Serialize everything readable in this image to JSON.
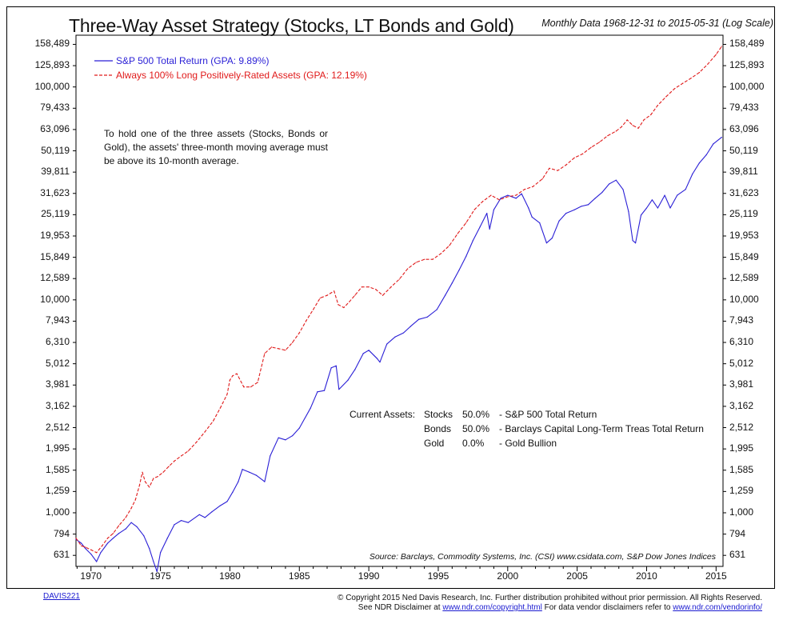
{
  "title": "Three-Way Asset Strategy (Stocks, LT Bonds and Gold)",
  "subtitle": "Monthly Data 1968-12-31 to 2015-05-31 (Log Scale)",
  "legend": [
    {
      "label": "S&P 500 Total Return (GPA: 9.89%)",
      "color": "#2a1fd6",
      "style": "solid"
    },
    {
      "label": "Always 100% Long Positively-Rated Assets (GPA: 12.19%)",
      "color": "#e01a1a",
      "style": "dashed"
    }
  ],
  "note": "To hold one of the three assets (Stocks, Bonds or Gold), the assets' three-month moving average must be above its 10-month average.",
  "current_assets": {
    "heading": "Current Assets:",
    "rows": [
      {
        "asset": "Stocks",
        "weight": "50.0%",
        "desc": "- S&P 500 Total Return"
      },
      {
        "asset": "Bonds",
        "weight": "50.0%",
        "desc": "- Barclays Capital Long-Term Treas Total Return"
      },
      {
        "asset": "Gold",
        "weight": "0.0%",
        "desc": "- Gold Bullion"
      }
    ]
  },
  "source": "Source: Barclays, Commodity Systems, Inc. (CSI) www.csidata.com, S&P Dow Jones Indices",
  "footer_id": "DAVIS221",
  "copyright": {
    "line1": "© Copyright 2015 Ned Davis Research, Inc. Further distribution prohibited without prior permission. All Rights Reserved.",
    "line2_prefix": "See NDR Disclaimer at ",
    "line2_link1": "www.ndr.com/copyright.html",
    "line2_mid": "  For data vendor disclaimers refer to ",
    "line2_link2": "www.ndr.com/vendorinfo/"
  },
  "chart_data": {
    "type": "line",
    "scale": "log",
    "ylim": [
      560,
      175000
    ],
    "xlim": [
      1968.92,
      2015.5
    ],
    "y_ticks": [
      631,
      794,
      1000,
      1259,
      1585,
      1995,
      2512,
      3162,
      3981,
      5012,
      6310,
      7943,
      10000,
      12589,
      15849,
      19953,
      25119,
      31623,
      39811,
      50119,
      63096,
      79433,
      100000,
      125893,
      158489
    ],
    "y_tick_labels": [
      "631",
      "794",
      "1,000",
      "1,259",
      "1,585",
      "1,995",
      "2,512",
      "3,162",
      "3,981",
      "5,012",
      "6,310",
      "7,943",
      "10,000",
      "12,589",
      "15,849",
      "19,953",
      "25,119",
      "31,623",
      "39,811",
      "50,119",
      "63,096",
      "79,433",
      "100,000",
      "125,893",
      "158,489"
    ],
    "x_ticks": [
      1970,
      1975,
      1980,
      1985,
      1990,
      1995,
      2000,
      2005,
      2010,
      2015
    ],
    "x_tick_labels": [
      "1970",
      "1975",
      "1980",
      "1985",
      "1990",
      "1995",
      "2000",
      "2005",
      "2010",
      "2015"
    ],
    "series": [
      {
        "name": "S&P 500 Total Return (GPA: 9.89%)",
        "color": "#2a1fd6",
        "dash": false,
        "x": [
          1968.92,
          1969.3,
          1969.6,
          1970.0,
          1970.4,
          1970.7,
          1971.2,
          1971.6,
          1972.0,
          1972.5,
          1972.9,
          1973.3,
          1973.8,
          1974.2,
          1974.5,
          1974.75,
          1975.0,
          1975.5,
          1976.0,
          1976.5,
          1977.0,
          1977.8,
          1978.2,
          1978.7,
          1979.3,
          1979.8,
          1980.2,
          1980.6,
          1980.9,
          1981.4,
          1981.9,
          1982.5,
          1982.9,
          1983.5,
          1984.0,
          1984.5,
          1985.0,
          1985.8,
          1986.3,
          1986.8,
          1987.3,
          1987.65,
          1987.85,
          1988.5,
          1989.0,
          1989.6,
          1990.0,
          1990.6,
          1990.8,
          1991.3,
          1991.9,
          1992.5,
          1993.0,
          1993.6,
          1994.2,
          1994.9,
          1995.5,
          1996.0,
          1996.5,
          1997.0,
          1997.5,
          1998.0,
          1998.5,
          1998.7,
          1999.0,
          1999.5,
          2000.0,
          2000.6,
          2001.0,
          2001.5,
          2001.75,
          2002.3,
          2002.8,
          2003.2,
          2003.7,
          2004.2,
          2004.8,
          2005.3,
          2005.8,
          2006.3,
          2006.8,
          2007.3,
          2007.8,
          2008.3,
          2008.7,
          2009.0,
          2009.2,
          2009.6,
          2010.0,
          2010.4,
          2010.8,
          2011.3,
          2011.7,
          2012.2,
          2012.8,
          2013.3,
          2013.8,
          2014.3,
          2014.8,
          2015.4
        ],
        "values": [
          750,
          720,
          680,
          640,
          590,
          650,
          720,
          760,
          800,
          840,
          900,
          860,
          780,
          680,
          590,
          530,
          650,
          760,
          880,
          920,
          900,
          980,
          950,
          1010,
          1080,
          1130,
          1250,
          1400,
          1600,
          1550,
          1500,
          1400,
          1850,
          2250,
          2200,
          2300,
          2500,
          3100,
          3700,
          3750,
          4800,
          4900,
          3800,
          4200,
          4700,
          5600,
          5800,
          5300,
          5100,
          6200,
          6700,
          7000,
          7500,
          8100,
          8300,
          9000,
          10500,
          12000,
          13800,
          16000,
          19000,
          22000,
          25500,
          21500,
          26500,
          30000,
          31000,
          30000,
          31500,
          27000,
          24500,
          23000,
          18500,
          19500,
          23500,
          25500,
          26500,
          27500,
          28000,
          30000,
          32000,
          35000,
          36500,
          33000,
          26000,
          19000,
          18500,
          25000,
          27000,
          29500,
          27000,
          31000,
          27000,
          31000,
          33000,
          39000,
          44000,
          48000,
          54000,
          58000
        ]
      },
      {
        "name": "Always 100% Long Positively-Rated Assets (GPA: 12.19%)",
        "color": "#e01a1a",
        "dash": true,
        "x": [
          1968.92,
          1969.3,
          1969.6,
          1970.0,
          1970.4,
          1970.8,
          1971.2,
          1971.6,
          1972.0,
          1972.5,
          1972.9,
          1973.2,
          1973.5,
          1973.7,
          1973.9,
          1974.2,
          1974.5,
          1974.8,
          1975.2,
          1975.6,
          1976.0,
          1976.5,
          1977.0,
          1977.6,
          1978.2,
          1978.8,
          1979.3,
          1979.8,
          1980.0,
          1980.2,
          1980.5,
          1981.0,
          1981.5,
          1982.0,
          1982.5,
          1983.0,
          1983.5,
          1984.0,
          1984.5,
          1985.0,
          1985.5,
          1986.0,
          1986.5,
          1987.0,
          1987.5,
          1987.8,
          1988.2,
          1988.6,
          1989.0,
          1989.5,
          1990.0,
          1990.5,
          1991.0,
          1991.6,
          1992.2,
          1992.8,
          1993.4,
          1994.0,
          1994.6,
          1995.2,
          1995.8,
          1996.4,
          1997.0,
          1997.6,
          1998.2,
          1998.8,
          1999.4,
          2000.0,
          2000.6,
          2001.2,
          2001.8,
          2002.5,
          2003.0,
          2003.6,
          2004.2,
          2004.8,
          2005.4,
          2006.0,
          2006.6,
          2007.2,
          2007.8,
          2008.2,
          2008.6,
          2009.0,
          2009.4,
          2009.8,
          2010.3,
          2010.8,
          2011.4,
          2012.0,
          2012.6,
          2013.2,
          2013.8,
          2014.4,
          2015.0,
          2015.4
        ],
        "values": [
          760,
          700,
          690,
          670,
          650,
          700,
          760,
          800,
          870,
          950,
          1050,
          1150,
          1350,
          1550,
          1400,
          1320,
          1450,
          1480,
          1550,
          1650,
          1750,
          1850,
          1950,
          2150,
          2400,
          2700,
          3100,
          3600,
          4200,
          4400,
          4500,
          3900,
          3900,
          4100,
          5600,
          6000,
          5900,
          5800,
          6300,
          7000,
          8000,
          9000,
          10200,
          10500,
          11000,
          9500,
          9200,
          9800,
          10500,
          11500,
          11500,
          11200,
          10500,
          11500,
          12500,
          14000,
          15000,
          15500,
          15500,
          16500,
          18000,
          20500,
          23000,
          26500,
          29000,
          31000,
          29500,
          30500,
          31000,
          33000,
          34000,
          37000,
          41500,
          40500,
          43000,
          46500,
          48500,
          52000,
          55000,
          59000,
          62000,
          65000,
          70000,
          66000,
          64000,
          70000,
          74000,
          82000,
          90000,
          98000,
          104000,
          110000,
          117000,
          128000,
          142000,
          155000
        ]
      }
    ]
  }
}
